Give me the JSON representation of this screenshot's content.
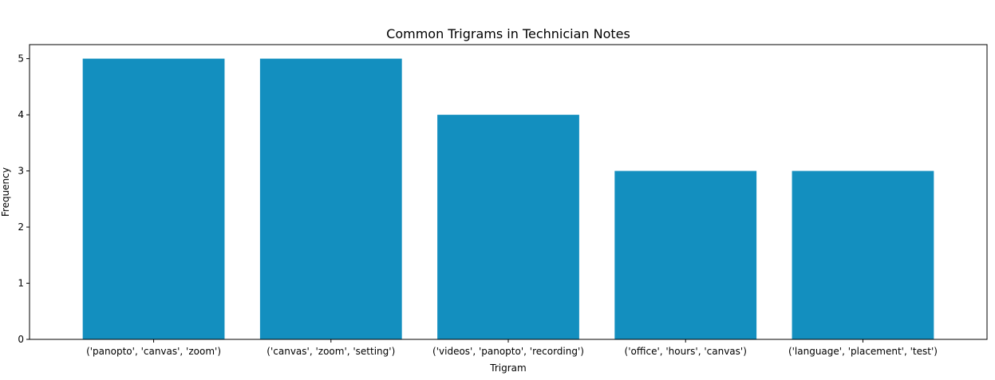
{
  "chart_data": {
    "type": "bar",
    "title": "Common Trigrams in Technician Notes",
    "xlabel": "Trigram",
    "ylabel": "Frequency",
    "categories": [
      "('panopto', 'canvas', 'zoom')",
      "('canvas', 'zoom', 'setting')",
      "('videos', 'panopto', 'recording')",
      "('office', 'hours', 'canvas')",
      "('language', 'placement', 'test')"
    ],
    "values": [
      5,
      5,
      4,
      3,
      3
    ],
    "ylim": [
      0,
      5.25
    ],
    "yticks": [
      0,
      1,
      2,
      3,
      4,
      5
    ],
    "bar_color": "#138fbf",
    "grid": false,
    "legend": "none"
  }
}
